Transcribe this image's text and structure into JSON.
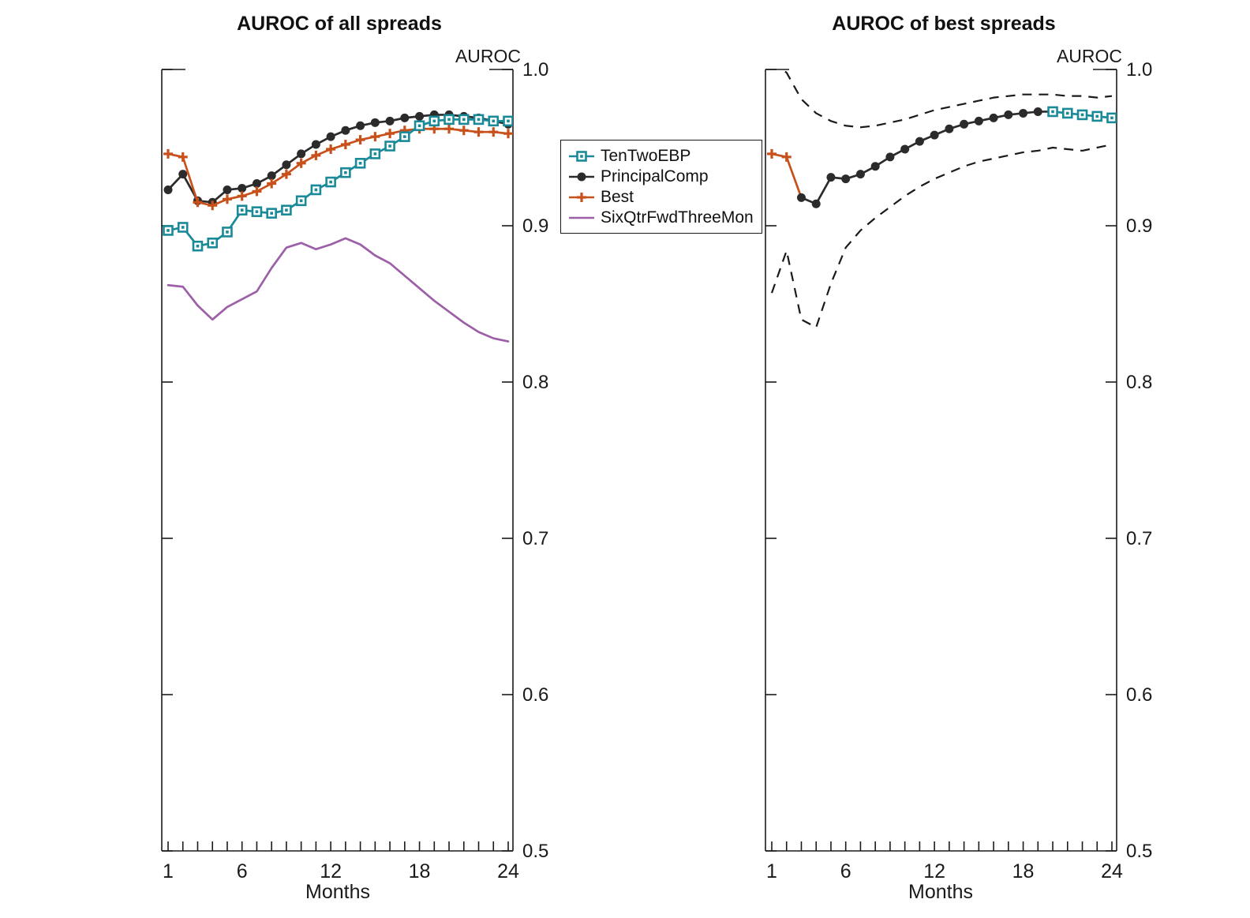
{
  "figure": {
    "background": "#ffffff"
  },
  "legend": {
    "items": [
      {
        "label": "TenTwoEBP",
        "color": "#1A8A99",
        "marker": "square"
      },
      {
        "label": "PrincipalComp",
        "color": "#2B2B2B",
        "marker": "circle"
      },
      {
        "label": "Best",
        "color": "#C8511B",
        "marker": "plus"
      },
      {
        "label": "SixQtrFwdThreeMon",
        "color": "#9C5FA8",
        "marker": "none"
      }
    ]
  },
  "chart_data": [
    {
      "type": "line",
      "title": "AUROC of all spreads",
      "xlabel": "Months",
      "ylabel": "AUROC",
      "xlim": [
        1,
        24
      ],
      "ylim": [
        0.5,
        1.0
      ],
      "grid": false,
      "legend_position": "outside-right",
      "x_ticks": [
        1,
        6,
        12,
        18,
        24
      ],
      "x_tick_labels": [
        "1",
        "6",
        "12",
        "18",
        "24"
      ],
      "y_ticks": [
        0.5,
        0.6,
        0.7,
        0.8,
        0.9,
        1.0
      ],
      "y_tick_labels": [
        "0.5",
        "0.6",
        "0.7",
        "0.8",
        "0.9",
        "1.0"
      ],
      "x": [
        1,
        2,
        3,
        4,
        5,
        6,
        7,
        8,
        9,
        10,
        11,
        12,
        13,
        14,
        15,
        16,
        17,
        18,
        19,
        20,
        21,
        22,
        23,
        24
      ],
      "series": [
        {
          "name": "SixQtrFwdThreeMon",
          "color": "#9C5FA8",
          "marker": "none",
          "values": [
            0.862,
            0.861,
            0.849,
            0.84,
            0.848,
            0.853,
            0.858,
            0.873,
            0.886,
            0.889,
            0.885,
            0.888,
            0.892,
            0.888,
            0.881,
            0.876,
            0.868,
            0.86,
            0.852,
            0.845,
            0.838,
            0.832,
            0.828,
            0.826
          ]
        },
        {
          "name": "PrincipalComp",
          "color": "#2B2B2B",
          "marker": "circle",
          "values": [
            0.923,
            0.933,
            0.916,
            0.915,
            0.923,
            0.924,
            0.927,
            0.932,
            0.939,
            0.946,
            0.952,
            0.957,
            0.961,
            0.964,
            0.966,
            0.967,
            0.969,
            0.97,
            0.971,
            0.971,
            0.97,
            0.969,
            0.967,
            0.965
          ]
        },
        {
          "name": "Best",
          "color": "#C8511B",
          "marker": "plus",
          "values": [
            0.946,
            0.944,
            0.915,
            0.913,
            0.917,
            0.919,
            0.922,
            0.927,
            0.933,
            0.94,
            0.945,
            0.949,
            0.952,
            0.955,
            0.957,
            0.959,
            0.961,
            0.962,
            0.962,
            0.962,
            0.961,
            0.96,
            0.96,
            0.959
          ]
        },
        {
          "name": "TenTwoEBP",
          "color": "#1A8A99",
          "marker": "square",
          "values": [
            0.897,
            0.899,
            0.887,
            0.889,
            0.896,
            0.91,
            0.909,
            0.908,
            0.91,
            0.916,
            0.923,
            0.928,
            0.934,
            0.94,
            0.946,
            0.951,
            0.957,
            0.964,
            0.967,
            0.968,
            0.968,
            0.968,
            0.967,
            0.967
          ]
        }
      ]
    },
    {
      "type": "line",
      "title": "AUROC of best spreads",
      "xlabel": "Months",
      "ylabel": "AUROC",
      "xlim": [
        1,
        24
      ],
      "ylim": [
        0.5,
        1.0
      ],
      "grid": false,
      "x_ticks": [
        1,
        6,
        12,
        18,
        24
      ],
      "x_tick_labels": [
        "1",
        "6",
        "12",
        "18",
        "24"
      ],
      "y_ticks": [
        0.5,
        0.6,
        0.7,
        0.8,
        0.9,
        1.0
      ],
      "y_tick_labels": [
        "0.5",
        "0.6",
        "0.7",
        "0.8",
        "0.9",
        "1.0"
      ],
      "x": [
        1,
        2,
        3,
        4,
        5,
        6,
        7,
        8,
        9,
        10,
        11,
        12,
        13,
        14,
        15,
        16,
        17,
        18,
        19,
        20,
        21,
        22,
        23,
        24
      ],
      "series": [
        {
          "name": "band-upper",
          "color": "#1a1a1a",
          "marker": "none",
          "dash": true,
          "width": 2.2,
          "x": [
            1,
            2,
            3,
            4,
            5,
            6,
            7,
            8,
            9,
            10,
            11,
            12,
            13,
            14,
            15,
            16,
            17,
            18,
            19,
            20,
            21,
            22,
            23,
            24
          ],
          "values": [
            1.005,
            0.998,
            0.981,
            0.972,
            0.967,
            0.964,
            0.963,
            0.964,
            0.966,
            0.968,
            0.971,
            0.974,
            0.976,
            0.978,
            0.98,
            0.982,
            0.983,
            0.984,
            0.984,
            0.984,
            0.983,
            0.983,
            0.982,
            0.983
          ]
        },
        {
          "name": "band-lower",
          "color": "#1a1a1a",
          "marker": "none",
          "dash": true,
          "width": 2.2,
          "x": [
            1,
            2,
            3,
            4,
            5,
            6,
            7,
            8,
            9,
            10,
            11,
            12,
            13,
            14,
            15,
            16,
            17,
            18,
            19,
            20,
            21,
            22,
            23,
            24
          ],
          "values": [
            0.857,
            0.884,
            0.84,
            0.835,
            0.863,
            0.886,
            0.897,
            0.905,
            0.912,
            0.919,
            0.925,
            0.93,
            0.934,
            0.938,
            0.941,
            0.943,
            0.945,
            0.947,
            0.948,
            0.95,
            0.949,
            0.948,
            0.95,
            0.952
          ]
        },
        {
          "name": "Best",
          "color": "#C8511B",
          "marker": "plus",
          "x": [
            1,
            2,
            3
          ],
          "markers_at": [
            1,
            2
          ],
          "values": [
            0.946,
            0.944,
            0.918
          ]
        },
        {
          "name": "PrincipalComp",
          "color": "#2B2B2B",
          "marker": "circle",
          "x": [
            3,
            4,
            5,
            6,
            7,
            8,
            9,
            10,
            11,
            12,
            13,
            14,
            15,
            16,
            17,
            18,
            19,
            20
          ],
          "values": [
            0.918,
            0.914,
            0.931,
            0.93,
            0.933,
            0.938,
            0.944,
            0.949,
            0.954,
            0.958,
            0.962,
            0.965,
            0.967,
            0.969,
            0.971,
            0.972,
            0.973,
            0.973
          ]
        },
        {
          "name": "TenTwoEBP",
          "color": "#1A8A99",
          "marker": "square",
          "x": [
            20,
            21,
            22,
            23,
            24
          ],
          "values": [
            0.973,
            0.972,
            0.971,
            0.97,
            0.969
          ]
        }
      ]
    }
  ]
}
